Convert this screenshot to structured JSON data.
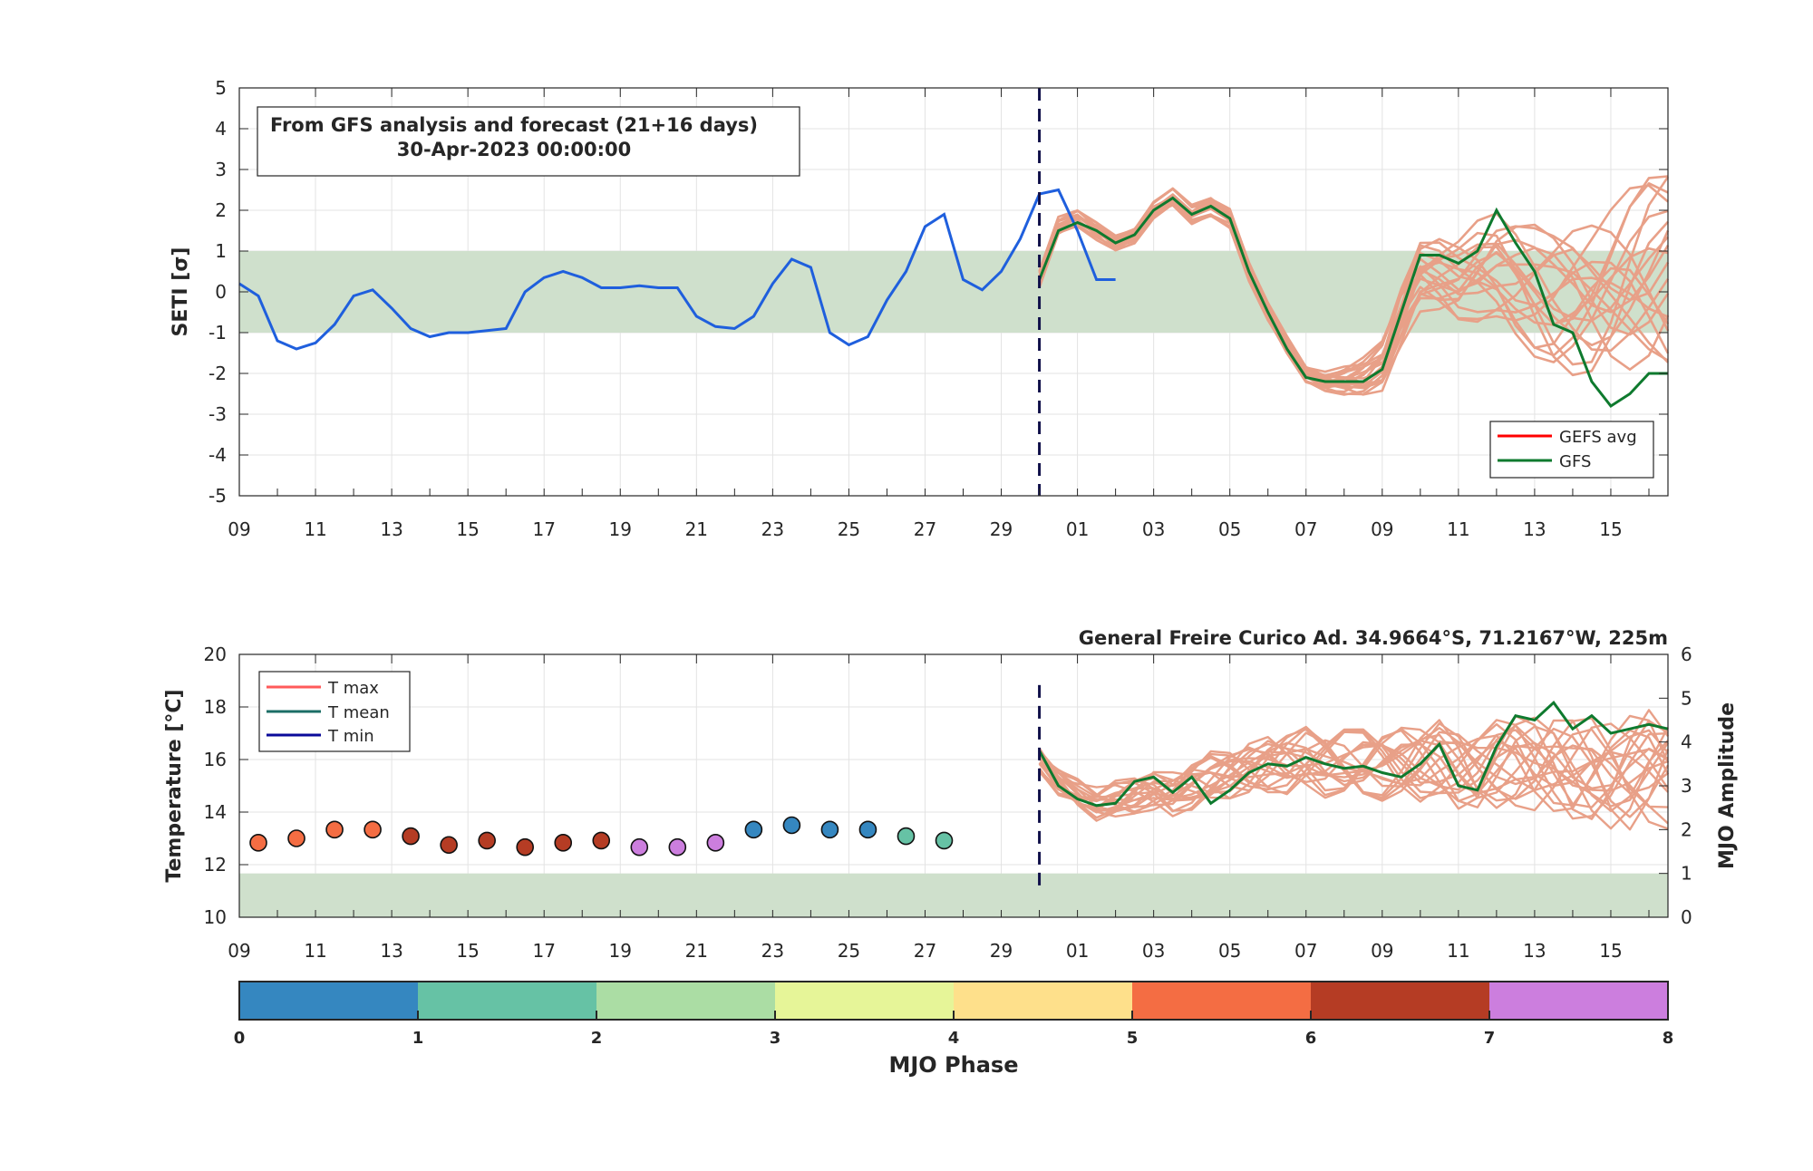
{
  "chart_data": [
    {
      "type": "line",
      "ylabel": "SETI [σ]",
      "ylim": [
        -5,
        5
      ],
      "yticks": [
        -5,
        -4,
        -3,
        -2,
        -1,
        0,
        1,
        2,
        3,
        4,
        5
      ],
      "xtick_labels": [
        "09",
        "11",
        "13",
        "15",
        "17",
        "19",
        "21",
        "23",
        "25",
        "27",
        "29",
        "01",
        "03",
        "05",
        "07",
        "09",
        "11",
        "13",
        "15"
      ],
      "x_range_days": [
        0,
        37.5
      ],
      "forecast_start_day": 21,
      "normal_band": [
        -1,
        1
      ],
      "grid": true,
      "annotation": {
        "line1": "From GFS analysis and forecast (21+16 days)",
        "line2": "30-Apr-2023 00:00:00"
      },
      "legend": {
        "placement": "bottom-right",
        "entries": [
          "GEFS avg",
          "GFS"
        ]
      },
      "colors": {
        "analysis": "#1f5fdd",
        "gefs_members": "#e8a088",
        "gefs_avg": "#ff0000",
        "gfs": "#0e7a2e",
        "band": "#cfe0cc",
        "forecast_line": "#10104a"
      },
      "analysis_series": {
        "name": "",
        "points": [
          [
            0,
            0.2
          ],
          [
            0.5,
            -0.1
          ],
          [
            1,
            -1.2
          ],
          [
            1.5,
            -1.4
          ],
          [
            2,
            -1.25
          ],
          [
            2.5,
            -0.8
          ],
          [
            3,
            -0.1
          ],
          [
            3.5,
            0.05
          ],
          [
            4,
            -0.4
          ],
          [
            4.5,
            -0.9
          ],
          [
            5,
            -1.1
          ],
          [
            5.5,
            -1.0
          ],
          [
            6,
            -1.0
          ],
          [
            6.5,
            -0.95
          ],
          [
            7,
            -0.9
          ],
          [
            7.5,
            0.0
          ],
          [
            8,
            0.35
          ],
          [
            8.5,
            0.5
          ],
          [
            9,
            0.35
          ],
          [
            9.5,
            0.1
          ],
          [
            10,
            0.1
          ],
          [
            10.5,
            0.15
          ],
          [
            11,
            0.1
          ],
          [
            11.5,
            0.1
          ],
          [
            12,
            -0.6
          ],
          [
            12.5,
            -0.85
          ],
          [
            13,
            -0.9
          ],
          [
            13.5,
            -0.6
          ],
          [
            14,
            0.2
          ],
          [
            14.5,
            0.8
          ],
          [
            15,
            0.6
          ],
          [
            15.5,
            -1.0
          ],
          [
            16,
            -1.3
          ],
          [
            16.5,
            -1.1
          ],
          [
            17,
            -0.2
          ],
          [
            17.5,
            0.5
          ],
          [
            18,
            1.6
          ],
          [
            18.5,
            1.9
          ],
          [
            19,
            0.3
          ],
          [
            19.5,
            0.05
          ],
          [
            20,
            0.5
          ],
          [
            20.5,
            1.3
          ],
          [
            21,
            2.4
          ],
          [
            21.5,
            2.5
          ],
          [
            22,
            1.5
          ],
          [
            22.5,
            0.3
          ],
          [
            23,
            0.3
          ]
        ]
      },
      "gfs_series": {
        "name": "GFS",
        "points": [
          [
            21,
            0.3
          ],
          [
            21.5,
            1.5
          ],
          [
            22,
            1.7
          ],
          [
            22.5,
            1.5
          ],
          [
            23,
            1.2
          ],
          [
            23.5,
            1.4
          ],
          [
            24,
            2.0
          ],
          [
            24.5,
            2.3
          ],
          [
            25,
            1.9
          ],
          [
            25.5,
            2.1
          ],
          [
            26,
            1.8
          ],
          [
            26.5,
            0.5
          ],
          [
            27,
            -0.5
          ],
          [
            27.5,
            -1.4
          ],
          [
            28,
            -2.1
          ],
          [
            28.5,
            -2.2
          ],
          [
            29,
            -2.2
          ],
          [
            29.5,
            -2.2
          ],
          [
            30,
            -1.9
          ],
          [
            30.5,
            -0.5
          ],
          [
            31,
            0.9
          ],
          [
            31.5,
            0.9
          ],
          [
            32,
            0.7
          ],
          [
            32.5,
            1.0
          ],
          [
            33,
            2.0
          ],
          [
            33.5,
            1.2
          ],
          [
            34,
            0.5
          ],
          [
            34.5,
            -0.8
          ],
          [
            35,
            -1.0
          ],
          [
            35.5,
            -2.2
          ],
          [
            36,
            -2.8
          ],
          [
            36.5,
            -2.5
          ],
          [
            37,
            -2.0
          ],
          [
            37.5,
            -2.0
          ]
        ]
      },
      "gefs_members_shape": {
        "days": [
          21,
          21.5,
          22,
          22.5,
          23,
          23.5,
          24,
          24.5,
          25,
          25.5,
          26,
          26.5,
          27,
          27.5,
          28,
          28.5,
          29,
          29.5,
          30,
          30.5,
          31,
          31.5,
          32,
          32.5,
          33,
          33.5,
          34,
          34.5,
          35,
          35.5,
          36,
          36.5,
          37,
          37.5
        ],
        "base": [
          0.3,
          1.6,
          1.8,
          1.5,
          1.2,
          1.4,
          2.0,
          2.3,
          1.9,
          2.1,
          1.8,
          0.5,
          -0.5,
          -1.3,
          -2.0,
          -2.2,
          -2.2,
          -2.1,
          -1.8,
          -0.6,
          0.4,
          0.4,
          0.3,
          0.5,
          0.6,
          0.3,
          0.0,
          -0.2,
          -0.2,
          -0.2,
          0.0,
          0.3,
          0.5,
          0.6
        ],
        "count": 20
      }
    },
    {
      "type": "scatter",
      "title": "General Freire Curico Ad. 34.9664°S, 71.2167°W, 225m",
      "ylabel": "Temperature [°C]",
      "y2label": "MJO Amplitude",
      "ylim": [
        10,
        20
      ],
      "yticks": [
        10,
        12,
        14,
        16,
        18,
        20
      ],
      "y2lim": [
        0,
        6
      ],
      "y2ticks": [
        0,
        1,
        2,
        3,
        4,
        5,
        6
      ],
      "xtick_labels": [
        "09",
        "11",
        "13",
        "15",
        "17",
        "19",
        "21",
        "23",
        "25",
        "27",
        "29",
        "01",
        "03",
        "05",
        "07",
        "09",
        "11",
        "13",
        "15"
      ],
      "amplitude_band_max": 1,
      "legend": {
        "placement": "top-left",
        "entries": [
          {
            "label": "T max",
            "color": "#ff5a5a"
          },
          {
            "label": "T mean",
            "color": "#1b6e66"
          },
          {
            "label": "T min",
            "color": "#0b0b9a"
          }
        ]
      },
      "mjo_points": [
        {
          "day": 0.5,
          "amplitude": 1.7,
          "phase": 5
        },
        {
          "day": 1.5,
          "amplitude": 1.8,
          "phase": 5
        },
        {
          "day": 2.5,
          "amplitude": 2.0,
          "phase": 5
        },
        {
          "day": 3.5,
          "amplitude": 2.0,
          "phase": 5
        },
        {
          "day": 4.5,
          "amplitude": 1.85,
          "phase": 6
        },
        {
          "day": 5.5,
          "amplitude": 1.65,
          "phase": 6
        },
        {
          "day": 6.5,
          "amplitude": 1.75,
          "phase": 6
        },
        {
          "day": 7.5,
          "amplitude": 1.6,
          "phase": 6
        },
        {
          "day": 8.5,
          "amplitude": 1.7,
          "phase": 6
        },
        {
          "day": 9.5,
          "amplitude": 1.75,
          "phase": 6
        },
        {
          "day": 10.5,
          "amplitude": 1.6,
          "phase": 7
        },
        {
          "day": 11.5,
          "amplitude": 1.6,
          "phase": 7
        },
        {
          "day": 12.5,
          "amplitude": 1.7,
          "phase": 7
        },
        {
          "day": 13.5,
          "amplitude": 2.0,
          "phase": 0
        },
        {
          "day": 14.5,
          "amplitude": 2.1,
          "phase": 0
        },
        {
          "day": 15.5,
          "amplitude": 2.0,
          "phase": 0
        },
        {
          "day": 16.5,
          "amplitude": 2.0,
          "phase": 0
        },
        {
          "day": 17.5,
          "amplitude": 1.85,
          "phase": 1
        },
        {
          "day": 18.5,
          "amplitude": 1.75,
          "phase": 1
        }
      ],
      "forecast_amplitude_gfs": {
        "name": "",
        "points": [
          [
            21,
            3.8
          ],
          [
            21.5,
            3.0
          ],
          [
            22,
            2.7
          ],
          [
            22.5,
            2.55
          ],
          [
            23,
            2.6
          ],
          [
            23.5,
            3.1
          ],
          [
            24,
            3.2
          ],
          [
            24.5,
            2.85
          ],
          [
            25,
            3.2
          ],
          [
            25.5,
            2.6
          ],
          [
            26,
            2.9
          ],
          [
            26.5,
            3.3
          ],
          [
            27,
            3.5
          ],
          [
            27.5,
            3.45
          ],
          [
            28,
            3.65
          ],
          [
            28.5,
            3.5
          ],
          [
            29,
            3.4
          ],
          [
            29.5,
            3.45
          ],
          [
            30,
            3.3
          ],
          [
            30.5,
            3.2
          ],
          [
            31,
            3.5
          ],
          [
            31.5,
            3.95
          ],
          [
            32,
            3.0
          ],
          [
            32.5,
            2.9
          ],
          [
            33,
            3.9
          ],
          [
            33.5,
            4.6
          ],
          [
            34,
            4.5
          ],
          [
            34.5,
            4.9
          ],
          [
            35,
            4.3
          ],
          [
            35.5,
            4.6
          ],
          [
            36,
            4.2
          ],
          [
            36.5,
            4.3
          ],
          [
            37,
            4.4
          ],
          [
            37.5,
            4.3
          ]
        ]
      },
      "forecast_members_base": [
        3.6,
        3.1,
        2.8,
        2.6,
        2.7,
        2.8,
        2.9,
        2.8,
        3.0,
        3.2,
        3.3,
        3.4,
        3.5,
        3.5,
        3.6,
        3.5,
        3.5,
        3.5,
        3.5,
        3.5,
        3.5,
        3.6,
        3.4,
        3.3,
        3.5,
        3.6,
        3.5,
        3.5,
        3.4,
        3.4,
        3.3,
        3.3,
        3.4,
        3.3
      ]
    },
    {
      "type": "colorbar",
      "label": "MJO Phase",
      "ticks": [
        "0",
        "1",
        "2",
        "3",
        "4",
        "5",
        "6",
        "7",
        "8"
      ],
      "phase_colors": [
        "#3587c0",
        "#66c2a5",
        "#abdda4",
        "#e6f598",
        "#fee08b",
        "#f46d43",
        "#b53c24",
        "#cc7ede"
      ]
    }
  ]
}
